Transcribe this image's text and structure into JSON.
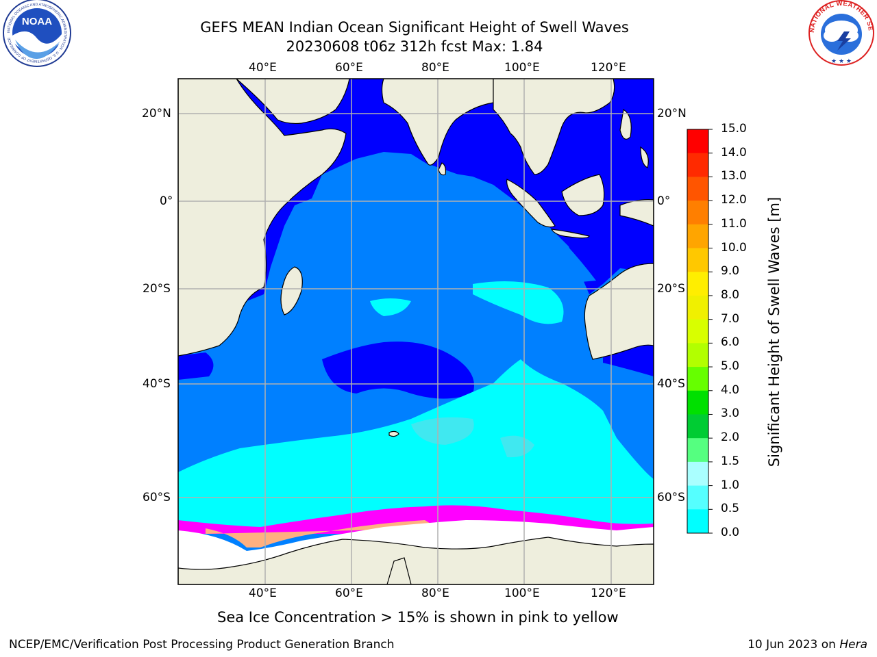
{
  "header": {
    "title_line1": "GEFS MEAN Indian Ocean Significant Height of Swell Waves",
    "title_line2": "20230608 t06z 312h fcst   Max: 1.84"
  },
  "logos": {
    "noaa": "NOAA",
    "noaa_ring": "NATIONAL OCEANIC AND ATMOSPHERIC ADMINISTRATION · U.S. DEPARTMENT OF COMMERCE",
    "nws_ring": "NATIONAL WEATHER SERVICE"
  },
  "map": {
    "lon_range": [
      20,
      130
    ],
    "lat_range": [
      -72,
      28
    ],
    "lon_ticks": [
      "40°E",
      "60°E",
      "80°E",
      "100°E",
      "120°E"
    ],
    "lat_ticks_left": [
      "20°N",
      "0°",
      "20°S",
      "40°S",
      "60°S"
    ],
    "lat_ticks_right": [
      "20°N",
      "0°",
      "20°S",
      "40°S",
      "60°S"
    ],
    "land_color": "#eeeedd",
    "ocean_colors": {
      "deep": "#0000ff",
      "mid": "#0080ff",
      "cyan": "#00ffff",
      "pale": "#40e8f0"
    },
    "sea_ice_colors": [
      "#ff00ff",
      "#ff80c0",
      "#ffb080",
      "#ffe040"
    ]
  },
  "colorbar": {
    "label": "Significant Height of Swell Waves [m]",
    "ticks": [
      "15.0",
      "14.0",
      "13.0",
      "12.0",
      "11.0",
      "10.0",
      "9.0",
      "8.0",
      "7.0",
      "6.0",
      "5.0",
      "4.0",
      "3.0",
      "2.0",
      "1.5",
      "1.0",
      "0.5",
      "0.0"
    ],
    "colors": [
      "#ff0000",
      "#ff2a00",
      "#ff5500",
      "#ff7f00",
      "#ffa500",
      "#ffc800",
      "#ffee00",
      "#f0f000",
      "#d8ff00",
      "#b2ff00",
      "#66ff00",
      "#00e000",
      "#00cc33",
      "#55ff80",
      "#aaffff",
      "#55ffff",
      "#00ffff",
      "#0080ff",
      "#0000ff"
    ]
  },
  "caption": "Sea Ice Concentration > 15% is shown in pink to yellow",
  "footer": {
    "left": "NCEP/EMC/Verification Post Processing Product Generation Branch",
    "right_date": "10 Jun 2023 on ",
    "right_host": "Hera"
  }
}
